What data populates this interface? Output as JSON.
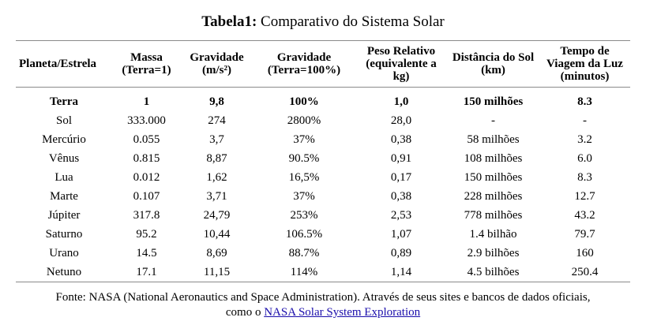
{
  "caption": {
    "label": "Tabela1:",
    "text": "Comparativo do Sistema Solar"
  },
  "table": {
    "headers": [
      "Planeta/Estrela",
      "Massa (Terra=1)",
      "Gravidade (m/s²)",
      "Gravidade (Terra=100%)",
      "Peso Relativo (equivalente a kg)",
      "Distância do Sol (km)",
      "Tempo de Viagem da Luz (minutos)"
    ],
    "rows": [
      [
        "Terra",
        "1",
        "9,8",
        "100%",
        "1,0",
        "150 milhões",
        "8.3"
      ],
      [
        "Sol",
        "333.000",
        "274",
        "2800%",
        "28,0",
        "-",
        "-"
      ],
      [
        "Mercúrio",
        "0.055",
        "3,7",
        "37%",
        "0,38",
        "58 milhões",
        "3.2"
      ],
      [
        "Vênus",
        "0.815",
        "8,87",
        "90.5%",
        "0,91",
        "108 milhões",
        "6.0"
      ],
      [
        "Lua",
        "0.012",
        "1,62",
        "16,5%",
        "0,17",
        "150 milhões",
        "8.3"
      ],
      [
        "Marte",
        "0.107",
        "3,71",
        "37%",
        "0,38",
        "228 milhões",
        "12.7"
      ],
      [
        "Júpiter",
        "317.8",
        "24,79",
        "253%",
        "2,53",
        "778 milhões",
        "43.2"
      ],
      [
        "Saturno",
        "95.2",
        "10,44",
        "106.5%",
        "1,07",
        "1.4 bilhão",
        "79.7"
      ],
      [
        "Urano",
        "14.5",
        "8,69",
        "88.7%",
        "0,89",
        "2.9 bilhões",
        "160"
      ],
      [
        "Netuno",
        "17.1",
        "11,15",
        "114%",
        "1,14",
        "4.5 bilhões",
        "250.4"
      ]
    ]
  },
  "source": {
    "line1": "Fonte: NASA (National Aeronautics and Space Administration). Através de seus sites e bancos de dados oficiais,",
    "line2_prefix": "como o",
    "link_text": "NASA Solar System Exploration"
  },
  "colors": {
    "link": "#1a0dab",
    "rule": "#8a8a8a"
  }
}
